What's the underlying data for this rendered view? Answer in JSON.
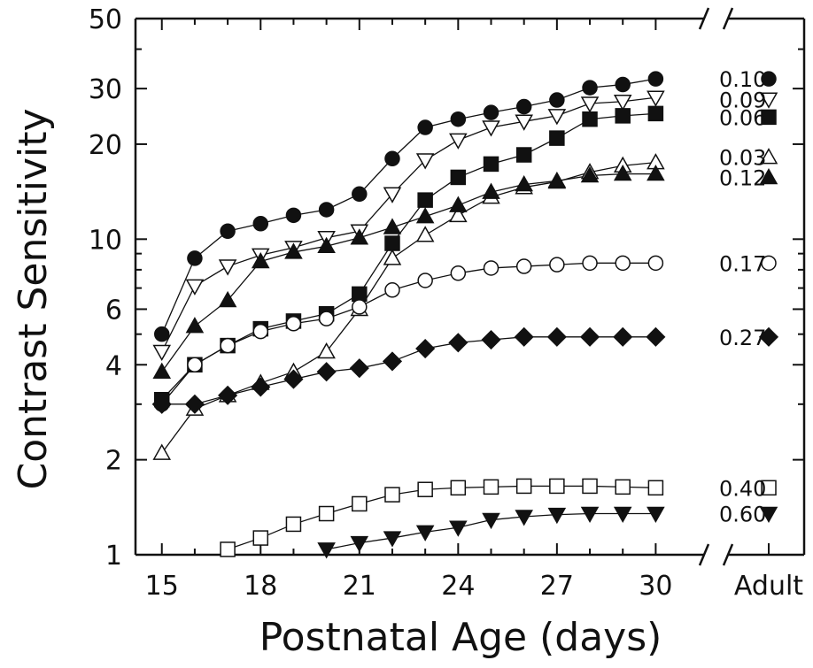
{
  "chart_data": {
    "type": "line",
    "xlabel": "Postnatal Age (days)",
    "ylabel": "Contrast Sensitivity",
    "yscale": "log",
    "ylim": [
      1,
      50
    ],
    "xlim": [
      14.2,
      31.2
    ],
    "xticks": [
      15,
      18,
      21,
      24,
      27,
      30
    ],
    "xtick_labels": [
      "15",
      "18",
      "21",
      "24",
      "27",
      "30"
    ],
    "extra_xtick_label": "Adult",
    "yticks": [
      1,
      2,
      4,
      6,
      10,
      20,
      30,
      50
    ],
    "ytick_labels": [
      "1",
      "2",
      "4",
      "6",
      "10",
      "20",
      "30",
      "50"
    ],
    "axis_break": true,
    "grid": false,
    "series": [
      {
        "name": "0.10",
        "marker": "circle",
        "fill": "#111111",
        "x": [
          15,
          16,
          17,
          18,
          19,
          20,
          21,
          22,
          23,
          24,
          25,
          26,
          27,
          28,
          29,
          30
        ],
        "y": [
          5.0,
          8.7,
          10.6,
          11.2,
          11.9,
          12.4,
          13.9,
          18.0,
          22.6,
          24.0,
          25.2,
          26.3,
          27.6,
          30.2,
          30.9,
          32.2
        ],
        "adult": 32.2
      },
      {
        "name": "0.09",
        "marker": "triangle-down",
        "fill": "#ffffff",
        "x": [
          15,
          16,
          17,
          18,
          19,
          20,
          21,
          22,
          23,
          24,
          25,
          26,
          27,
          28,
          29,
          30
        ],
        "y": [
          4.4,
          7.1,
          8.2,
          8.9,
          9.4,
          10.1,
          10.6,
          13.9,
          17.8,
          20.6,
          22.6,
          23.6,
          24.6,
          26.9,
          27.3,
          28.1
        ],
        "adult": 28.1
      },
      {
        "name": "0.06",
        "marker": "square",
        "fill": "#111111",
        "x": [
          15,
          16,
          17,
          18,
          19,
          20,
          21,
          22,
          23,
          24,
          25,
          26,
          27,
          28,
          29,
          30
        ],
        "y": [
          3.1,
          4.0,
          4.6,
          5.2,
          5.5,
          5.8,
          6.7,
          9.7,
          13.3,
          15.7,
          17.3,
          18.5,
          20.9,
          24.0,
          24.6,
          25.0
        ],
        "adult": 25.0
      },
      {
        "name": "0.03",
        "marker": "triangle-up",
        "fill": "#ffffff",
        "x": [
          15,
          16,
          17,
          18,
          19,
          20,
          21,
          22,
          23,
          24,
          25,
          26,
          27,
          28,
          29,
          30
        ],
        "y": [
          2.1,
          2.9,
          3.2,
          3.5,
          3.8,
          4.4,
          6.0,
          8.7,
          10.3,
          11.9,
          13.6,
          14.6,
          15.2,
          16.3,
          17.1,
          17.5
        ],
        "adult": 17.5
      },
      {
        "name": "0.12",
        "marker": "triangle-up",
        "fill": "#111111",
        "x": [
          15,
          16,
          17,
          18,
          19,
          20,
          21,
          22,
          23,
          24,
          25,
          26,
          27,
          28,
          29,
          30
        ],
        "y": [
          3.8,
          5.3,
          6.4,
          8.5,
          9.1,
          9.5,
          10.1,
          10.9,
          11.8,
          12.8,
          14.1,
          14.9,
          15.3,
          15.9,
          16.1,
          16.1
        ],
        "adult": 16.1
      },
      {
        "name": "0.17",
        "marker": "circle",
        "fill": "#ffffff",
        "x": [
          15,
          16,
          17,
          18,
          19,
          20,
          21,
          22,
          23,
          24,
          25,
          26,
          27,
          28,
          29,
          30
        ],
        "y": [
          3.0,
          4.0,
          4.6,
          5.1,
          5.4,
          5.6,
          6.1,
          6.9,
          7.4,
          7.8,
          8.1,
          8.2,
          8.3,
          8.4,
          8.4,
          8.4
        ],
        "adult": 8.4
      },
      {
        "name": "0.27",
        "marker": "diamond",
        "fill": "#111111",
        "x": [
          15,
          16,
          17,
          18,
          19,
          20,
          21,
          22,
          23,
          24,
          25,
          26,
          27,
          28,
          29,
          30
        ],
        "y": [
          3.0,
          3.0,
          3.2,
          3.4,
          3.6,
          3.8,
          3.9,
          4.1,
          4.5,
          4.7,
          4.8,
          4.9,
          4.9,
          4.9,
          4.9,
          4.9
        ],
        "adult": 4.9
      },
      {
        "name": "0.40",
        "marker": "square",
        "fill": "#ffffff",
        "x": [
          17,
          18,
          19,
          20,
          21,
          22,
          23,
          24,
          25,
          26,
          27,
          28,
          29,
          30
        ],
        "y": [
          1.04,
          1.13,
          1.25,
          1.35,
          1.45,
          1.55,
          1.61,
          1.63,
          1.64,
          1.65,
          1.65,
          1.65,
          1.64,
          1.63
        ],
        "adult": 1.63
      },
      {
        "name": "0.60",
        "marker": "triangle-down",
        "fill": "#111111",
        "x": [
          20,
          21,
          22,
          23,
          24,
          25,
          26,
          27,
          28,
          29,
          30
        ],
        "y": [
          1.04,
          1.09,
          1.13,
          1.18,
          1.22,
          1.29,
          1.32,
          1.34,
          1.35,
          1.35,
          1.35
        ],
        "adult": 1.35
      }
    ]
  }
}
